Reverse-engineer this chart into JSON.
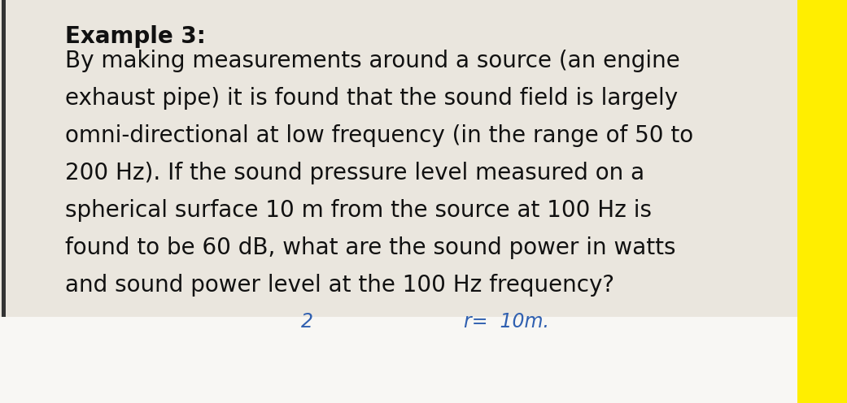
{
  "background_color": "#f0ede6",
  "main_area_color": "#eae6de",
  "bottom_area_color": "#f8f7f4",
  "title": "Example 3:",
  "title_fontsize": 20,
  "title_fontweight": "bold",
  "body_lines": [
    "By making measurements around a source (an engine",
    "exhaust pipe) it is found that the sound field is largely",
    "omni-directional at low frequency (in the range of 50 to",
    "200 Hz). If the sound pressure level measured on a",
    "spherical surface 10 m from the source at 100 Hz is",
    "found to be 60 dB, what are the sound power in watts",
    "and sound power level at the 100 Hz frequency?"
  ],
  "body_fontsize": 20,
  "handwritten_text1": "2",
  "handwritten_text2": "r=  10m.",
  "handwritten_color": "#3060b0",
  "sidebar_color": "#ffee00",
  "left_line_color": "#333333",
  "text_color": "#111111",
  "fig_width": 10.41,
  "fig_height": 4.96,
  "dpi": 100
}
